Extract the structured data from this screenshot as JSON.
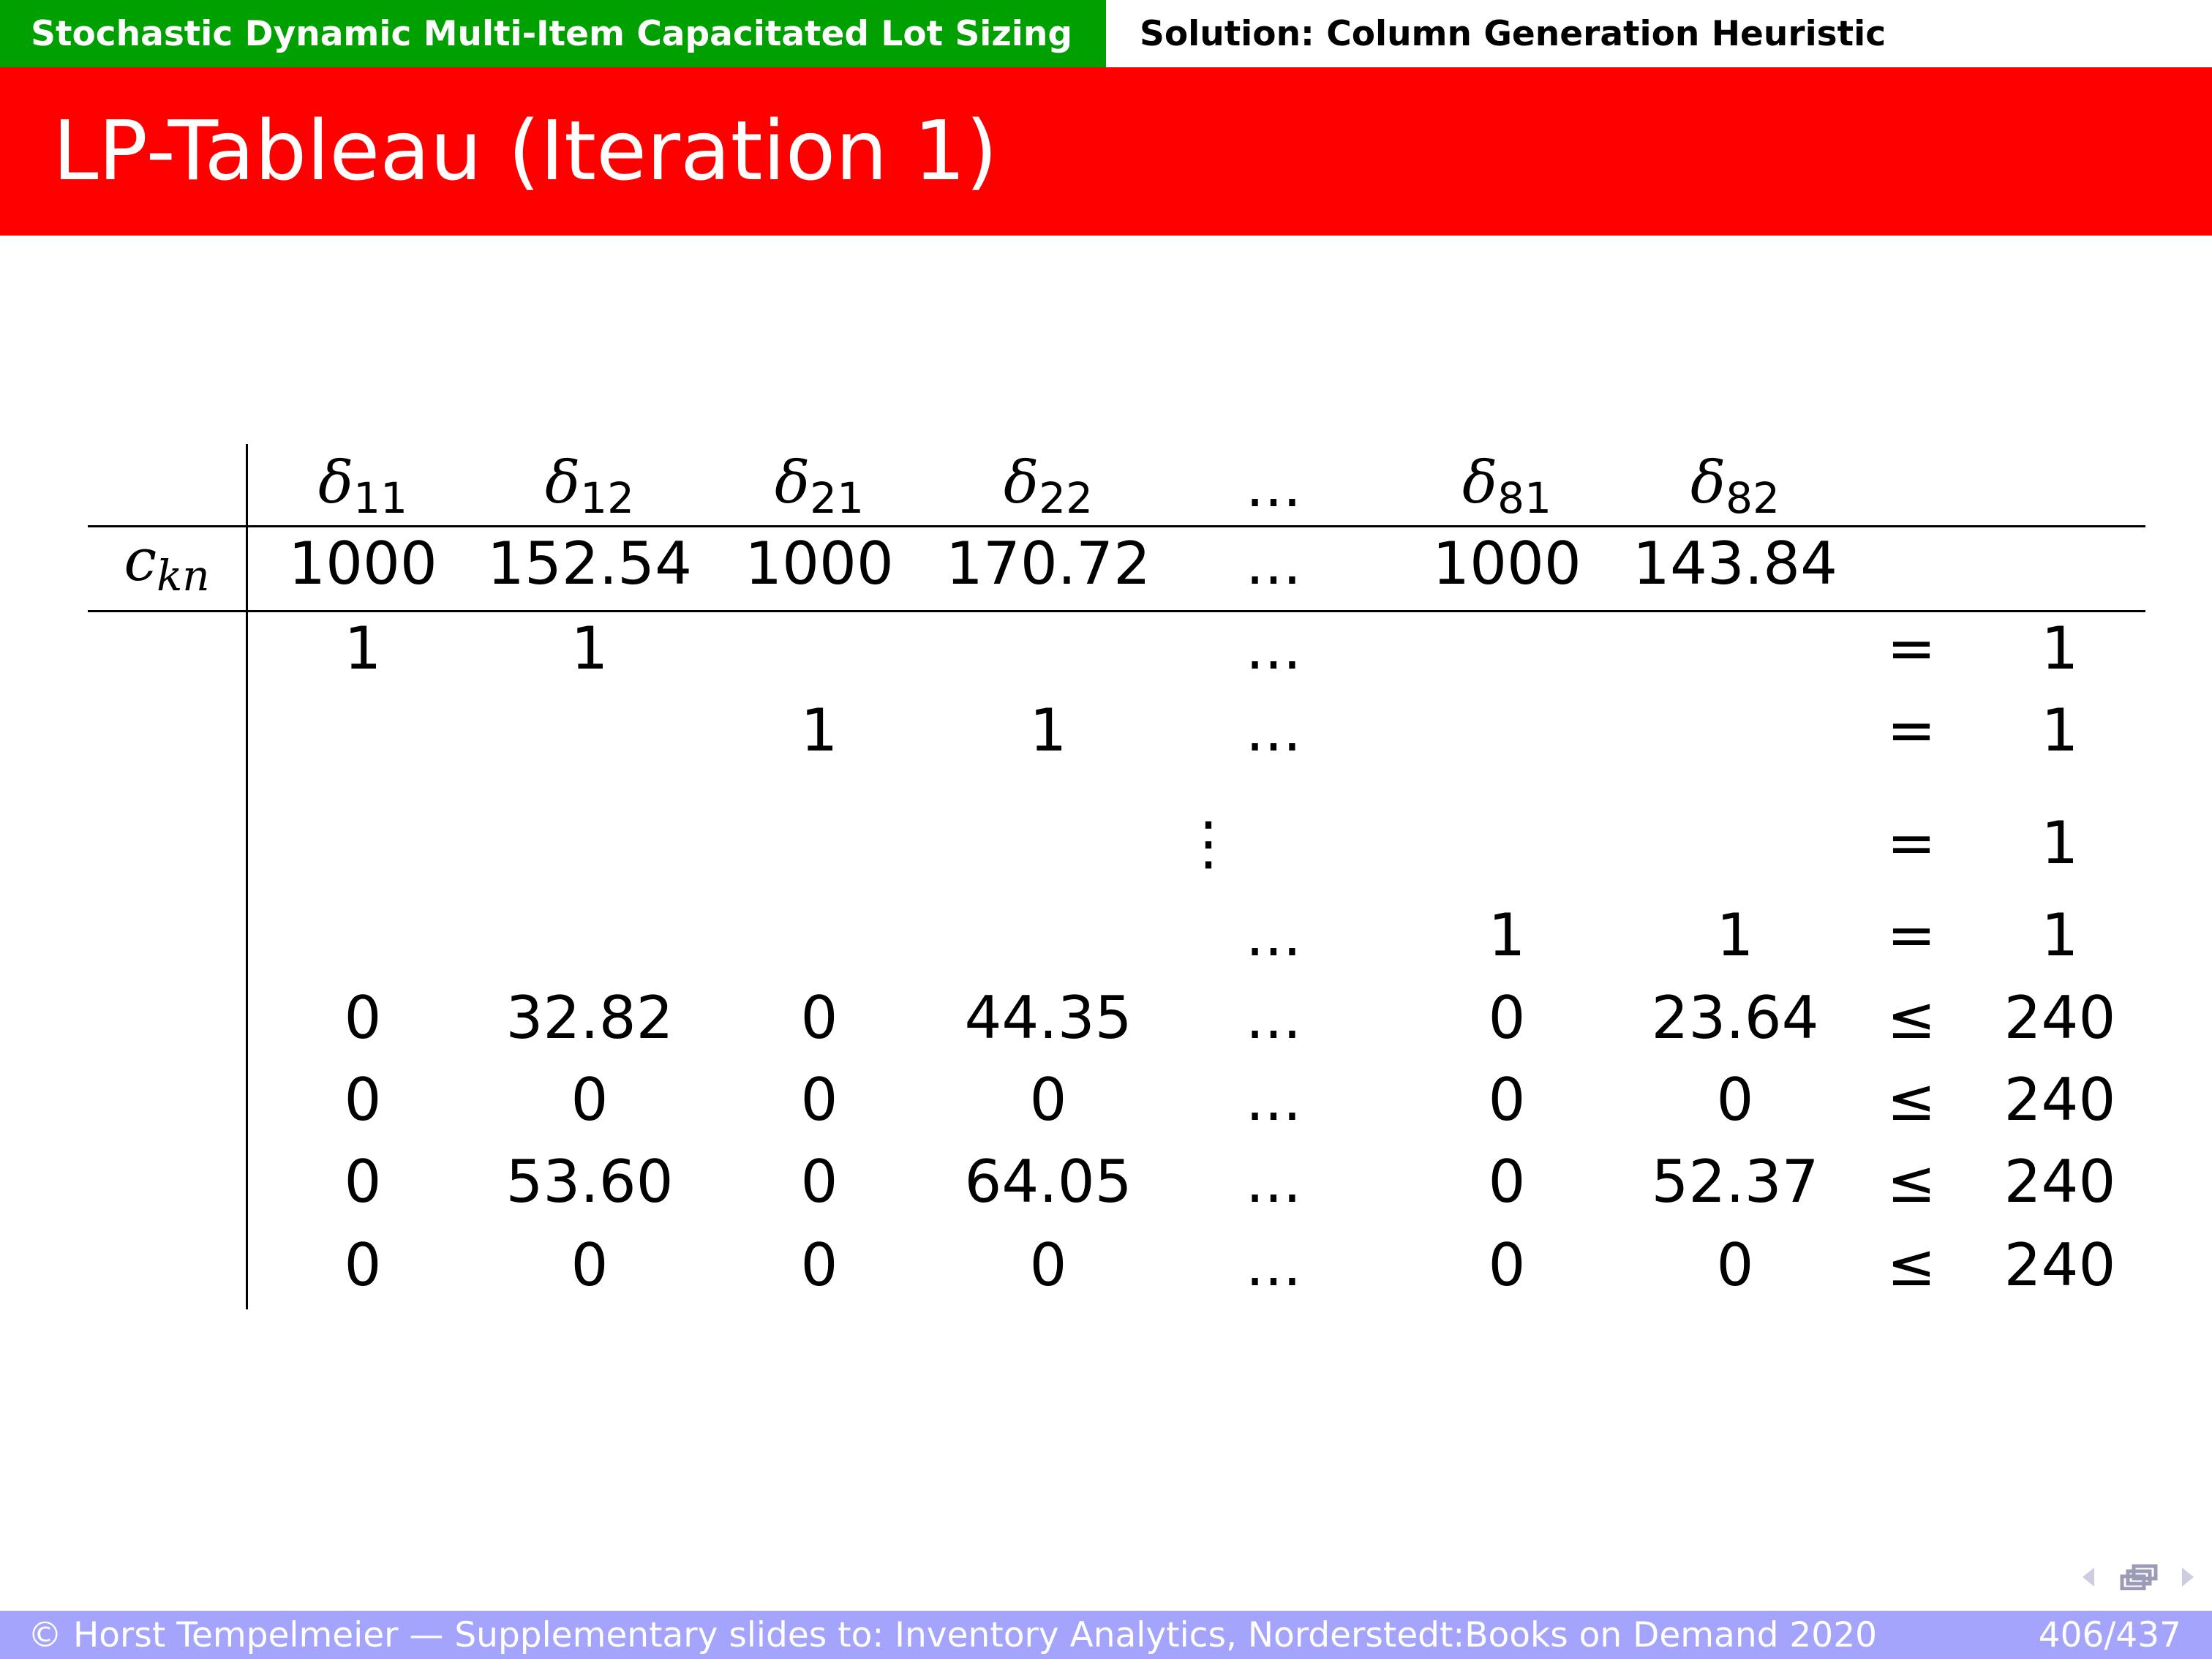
{
  "header": {
    "section": "Stochastic Dynamic Multi-Item Capacitated Lot Sizing",
    "subsection": "Solution:  Column Generation Heuristic"
  },
  "slide": {
    "title": "LP-Tableau (Iteration 1)"
  },
  "tableau": {
    "columns": [
      {
        "sym": "δ",
        "sub": "11"
      },
      {
        "sym": "δ",
        "sub": "12"
      },
      {
        "sym": "δ",
        "sub": "21"
      },
      {
        "sym": "δ",
        "sub": "22"
      },
      {
        "sym": "...",
        "sub": ""
      },
      {
        "sym": "δ",
        "sub": "81"
      },
      {
        "sym": "δ",
        "sub": "82"
      }
    ],
    "cost_label": "c",
    "cost_label_sub": "kn",
    "cost_row": [
      "1000",
      "152.54",
      "1000",
      "170.72",
      "...",
      "1000",
      "143.84"
    ],
    "rows": [
      {
        "cells": [
          "1",
          "1",
          "",
          "",
          "...",
          "",
          ""
        ],
        "rel": "=",
        "rhs": "1"
      },
      {
        "cells": [
          "",
          "",
          "1",
          "1",
          "...",
          "",
          ""
        ],
        "rel": "=",
        "rhs": "1"
      },
      {
        "cells": [
          "",
          "",
          "",
          "",
          "⋮",
          "",
          ""
        ],
        "rel": "=",
        "rhs": "1"
      },
      {
        "cells": [
          "",
          "",
          "",
          "",
          "...",
          "1",
          "1"
        ],
        "rel": "=",
        "rhs": "1"
      },
      {
        "cells": [
          "0",
          "32.82",
          "0",
          "44.35",
          "...",
          "0",
          "23.64"
        ],
        "rel": "≤",
        "rhs": "240"
      },
      {
        "cells": [
          "0",
          "0",
          "0",
          "0",
          "...",
          "0",
          "0"
        ],
        "rel": "≤",
        "rhs": "240"
      },
      {
        "cells": [
          "0",
          "53.60",
          "0",
          "64.05",
          "...",
          "0",
          "52.37"
        ],
        "rel": "≤",
        "rhs": "240"
      },
      {
        "cells": [
          "0",
          "0",
          "0",
          "0",
          "...",
          "0",
          "0"
        ],
        "rel": "≤",
        "rhs": "240"
      }
    ]
  },
  "footer": {
    "credit": "© Horst Tempelmeier — Supplementary slides to:  Inventory Analytics, Norderstedt:Books on Demand 2020",
    "page": "406/437"
  },
  "colors": {
    "section_bar": "#00a000",
    "title_bar": "#ff0000",
    "footer_bar": "#a4a4fc"
  }
}
